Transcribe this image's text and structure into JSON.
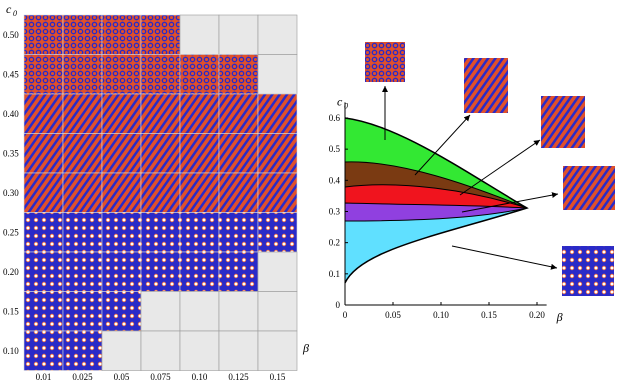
{
  "left_panel": {
    "y_label": "c",
    "y_label_sub": "0",
    "x_label": "β",
    "rows": [
      "0.50",
      "0.45",
      "0.40",
      "0.35",
      "0.30",
      "0.25",
      "0.20",
      "0.15",
      "0.10"
    ],
    "columns": [
      "0.01",
      "0.025",
      "0.05",
      "0.075",
      "0.10",
      "0.125",
      "0.15"
    ]
  },
  "chart_data": {
    "type": "phase-diagram",
    "x_label": "β",
    "y_label": "c",
    "y_label_sub": "0",
    "xlim": [
      0,
      0.21
    ],
    "ylim": [
      0,
      0.65
    ],
    "xticks": [
      0,
      0.05,
      {
        "value": 0.1,
        "label": "0.10"
      },
      0.15,
      {
        "value": 0.2,
        "label": "0.20"
      }
    ],
    "yticks": [
      0,
      0.1,
      0.2,
      0.3,
      0.4,
      0.5,
      0.6
    ]
  }
}
